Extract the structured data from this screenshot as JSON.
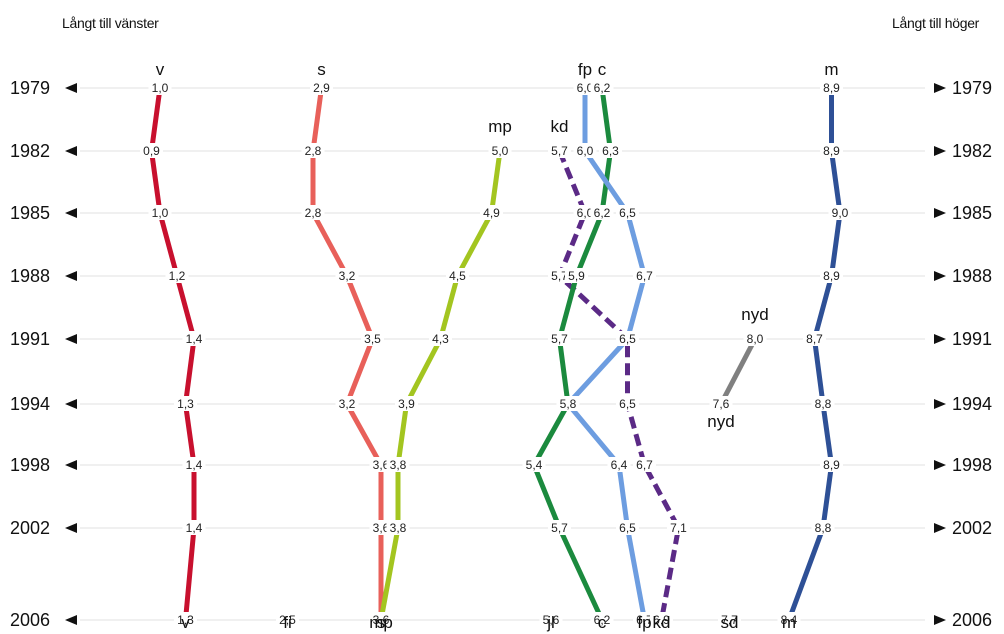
{
  "chart_data": {
    "type": "line",
    "corner_labels": {
      "left": "Långt till vänster",
      "right": "Långt till höger"
    },
    "years": [
      "1979",
      "1982",
      "1985",
      "1988",
      "1991",
      "1994",
      "1998",
      "2002",
      "2006"
    ],
    "x_range": [
      0.8,
      9.1
    ],
    "colors": {
      "v": "#c8102e",
      "s": "#e8605a",
      "mp": "#a3c520",
      "kd": "#5b2a86",
      "c": "#1b8a3e",
      "fp": "#6d9de0",
      "nyd": "#808080",
      "m": "#2e5096"
    },
    "series": [
      {
        "name": "v",
        "style": "solid",
        "values": [
          1.0,
          0.9,
          1.0,
          1.2,
          1.4,
          1.3,
          1.4,
          1.4,
          1.3
        ]
      },
      {
        "name": "s",
        "style": "solid",
        "values": [
          2.9,
          2.8,
          2.8,
          3.2,
          3.5,
          3.2,
          3.6,
          3.6,
          3.6
        ]
      },
      {
        "name": "mp",
        "style": "solid",
        "values": [
          null,
          5.0,
          4.9,
          4.5,
          4.3,
          3.9,
          3.8,
          3.8,
          3.6
        ]
      },
      {
        "name": "kd",
        "style": "dashed",
        "values": [
          null,
          5.7,
          6.0,
          5.7,
          6.5,
          6.5,
          6.7,
          7.1,
          6.9
        ]
      },
      {
        "name": "c",
        "style": "solid",
        "values": [
          6.2,
          6.3,
          6.2,
          5.9,
          5.7,
          5.8,
          5.4,
          5.7,
          6.2
        ]
      },
      {
        "name": "fp",
        "style": "solid",
        "values": [
          6.0,
          6.0,
          6.5,
          6.7,
          6.5,
          5.8,
          6.4,
          6.5,
          6.7
        ]
      },
      {
        "name": "nyd",
        "style": "solid",
        "values": [
          null,
          null,
          null,
          null,
          8.0,
          7.6,
          null,
          null,
          null
        ]
      },
      {
        "name": "m",
        "style": "solid",
        "values": [
          8.9,
          8.9,
          9.0,
          8.9,
          8.7,
          8.8,
          8.9,
          8.8,
          8.4
        ]
      }
    ],
    "extra_points_2006": [
      {
        "name": "fi",
        "value": 2.5
      },
      {
        "name": "jl",
        "value": 5.6
      },
      {
        "name": "sd",
        "value": 7.7
      }
    ],
    "value_labels": [
      {
        "y": "1979",
        "t": "1,0"
      },
      {
        "y": "1979",
        "t": "2,9"
      },
      {
        "y": "1979",
        "t": "6,0"
      },
      {
        "y": "1979",
        "t": "6,2"
      },
      {
        "y": "1979",
        "t": "8,9"
      },
      {
        "y": "1982",
        "t": "0,9"
      },
      {
        "y": "1982",
        "t": "2,8"
      },
      {
        "y": "1982",
        "t": "5,0"
      },
      {
        "y": "1982",
        "t": "5,7"
      },
      {
        "y": "1982",
        "t": "6,0"
      },
      {
        "y": "1982",
        "t": "6,3"
      },
      {
        "y": "1982",
        "t": "8,9"
      },
      {
        "y": "1985",
        "t": "1,0"
      },
      {
        "y": "1985",
        "t": "2,8"
      },
      {
        "y": "1985",
        "t": "4,9"
      },
      {
        "y": "1985",
        "t": "6,0"
      },
      {
        "y": "1985",
        "t": "6,2"
      },
      {
        "y": "1985",
        "t": "6,5"
      },
      {
        "y": "1985",
        "t": "9,0"
      },
      {
        "y": "1988",
        "t": "1,2"
      },
      {
        "y": "1988",
        "t": "3,2"
      },
      {
        "y": "1988",
        "t": "4,5"
      },
      {
        "y": "1988",
        "t": "5,7"
      },
      {
        "y": "1988",
        "t": "5,9"
      },
      {
        "y": "1988",
        "t": "6,7"
      },
      {
        "y": "1988",
        "t": "8,9"
      },
      {
        "y": "1991",
        "t": "1,4"
      },
      {
        "y": "1991",
        "t": "3,5"
      },
      {
        "y": "1991",
        "t": "4,3"
      },
      {
        "y": "1991",
        "t": "5,7"
      },
      {
        "y": "1991",
        "t": "6,5"
      },
      {
        "y": "1991",
        "t": "8,0"
      },
      {
        "y": "1991",
        "t": "8,7"
      },
      {
        "y": "1994",
        "t": "1,3"
      },
      {
        "y": "1994",
        "t": "3,2"
      },
      {
        "y": "1994",
        "t": "3,9"
      },
      {
        "y": "1994",
        "t": "5,8"
      },
      {
        "y": "1994",
        "t": "6,5"
      },
      {
        "y": "1994",
        "t": "7,6"
      },
      {
        "y": "1994",
        "t": "8,8"
      },
      {
        "y": "1998",
        "t": "1,4"
      },
      {
        "y": "1998",
        "t": "3,6"
      },
      {
        "y": "1998",
        "t": "3,8"
      },
      {
        "y": "1998",
        "t": "5,4"
      },
      {
        "y": "1998",
        "t": "6,4"
      },
      {
        "y": "1998",
        "t": "6,7"
      },
      {
        "y": "1998",
        "t": "8,9"
      },
      {
        "y": "2002",
        "t": "1,4"
      },
      {
        "y": "2002",
        "t": "3,6"
      },
      {
        "y": "2002",
        "t": "3,8"
      },
      {
        "y": "2002",
        "t": "5,7"
      },
      {
        "y": "2002",
        "t": "6,5"
      },
      {
        "y": "2002",
        "t": "7,1"
      },
      {
        "y": "2002",
        "t": "8,8"
      },
      {
        "y": "2006",
        "t": "1,3"
      },
      {
        "y": "2006",
        "t": "2,5"
      },
      {
        "y": "2006",
        "t": "3,6"
      },
      {
        "y": "2006",
        "t": "5,6"
      },
      {
        "y": "2006",
        "t": "6,2"
      },
      {
        "y": "2006",
        "t": "6,7"
      },
      {
        "y": "2006",
        "t": "6,9"
      },
      {
        "y": "2006",
        "t": "7,7"
      },
      {
        "y": "2006",
        "t": "8,4"
      }
    ],
    "party_labels": [
      {
        "t": "v",
        "at": "top"
      },
      {
        "t": "s",
        "at": "top"
      },
      {
        "t": "fp",
        "at": "top"
      },
      {
        "t": "c",
        "at": "top"
      },
      {
        "t": "m",
        "at": "top"
      },
      {
        "t": "mp",
        "at": "1982"
      },
      {
        "t": "kd",
        "at": "1982"
      },
      {
        "t": "nyd",
        "at": "1991"
      },
      {
        "t": "nyd",
        "at": "1994"
      },
      {
        "t": "v",
        "at": "bottom"
      },
      {
        "t": "fi",
        "at": "bottom"
      },
      {
        "t": "s",
        "at": "bottom"
      },
      {
        "t": "mp",
        "at": "bottom"
      },
      {
        "t": "jl",
        "at": "bottom"
      },
      {
        "t": "c",
        "at": "bottom"
      },
      {
        "t": "fp",
        "at": "bottom"
      },
      {
        "t": "kd",
        "at": "bottom"
      },
      {
        "t": "sd",
        "at": "bottom"
      },
      {
        "t": "m",
        "at": "bottom"
      }
    ]
  }
}
